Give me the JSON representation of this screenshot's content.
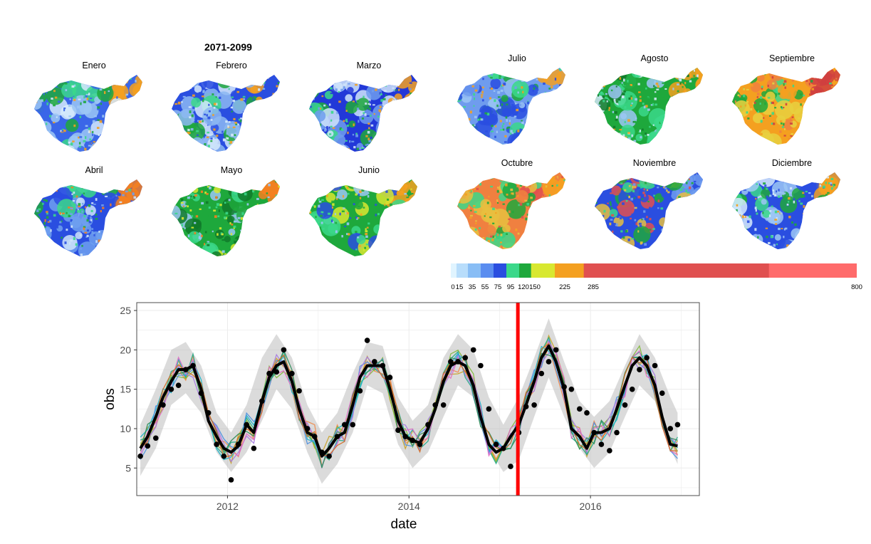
{
  "maps": {
    "period_title": "2071-2099",
    "panels": [
      {
        "month": "Enero",
        "palette": [
          "#3a66e8",
          "#9cc7f5",
          "#d6eafb",
          "#3bd88a",
          "#1ea83c",
          "#f4a020"
        ]
      },
      {
        "month": "Febrero",
        "palette": [
          "#2a4ee0",
          "#8cb8f2",
          "#d6eafb",
          "#3bd88a",
          "#1ea83c",
          "#f4a020"
        ]
      },
      {
        "month": "Marzo",
        "palette": [
          "#2238d8",
          "#6f9cee",
          "#cfe4fa",
          "#3bd88a",
          "#1ea83c",
          "#f4a020"
        ]
      },
      {
        "month": "Abril",
        "palette": [
          "#2a4ee0",
          "#6fa0ee",
          "#cfe4fa",
          "#3bd88a",
          "#1ea83c",
          "#f48020"
        ]
      },
      {
        "month": "Mayo",
        "palette": [
          "#1ea83c",
          "#117a2a",
          "#d8e830",
          "#3bd88a",
          "#9cc7f5",
          "#f48020"
        ]
      },
      {
        "month": "Junio",
        "palette": [
          "#1ea83c",
          "#3bd88a",
          "#2a4ee0",
          "#9cc7f5",
          "#d8e830",
          "#f4a020"
        ]
      },
      {
        "month": "Julio",
        "palette": [
          "#6f9cee",
          "#2a4ee0",
          "#3bd88a",
          "#1ea83c",
          "#9cc7f5",
          "#f4a020"
        ]
      },
      {
        "month": "Agosto",
        "palette": [
          "#1ea83c",
          "#3bd88a",
          "#9cc7f5",
          "#d6eafb",
          "#117a2a",
          "#f4a020"
        ]
      },
      {
        "month": "Septiembre",
        "palette": [
          "#f4a020",
          "#e8d040",
          "#1ea83c",
          "#3bd88a",
          "#f08040",
          "#d04040"
        ]
      },
      {
        "month": "Octubre",
        "palette": [
          "#f08040",
          "#e8c040",
          "#1ea83c",
          "#3bd88a",
          "#e05050",
          "#f4a020"
        ]
      },
      {
        "month": "Noviembre",
        "palette": [
          "#2a4ee0",
          "#e8c040",
          "#1ea83c",
          "#3bd88a",
          "#e05050",
          "#6f9cee"
        ]
      },
      {
        "month": "Diciembre",
        "palette": [
          "#2a4ee0",
          "#9cc7f5",
          "#d6eafb",
          "#3bd88a",
          "#1ea83c",
          "#f4a020"
        ]
      }
    ]
  },
  "colorbar": {
    "ticks": [
      "0",
      "15",
      "35",
      "55",
      "75",
      "95",
      "120",
      "150",
      "225",
      "285",
      "800"
    ],
    "breaks": [
      0,
      15,
      35,
      55,
      75,
      95,
      120,
      150,
      225,
      285,
      800
    ],
    "colors": [
      "#e0f4ff",
      "#b8ddfb",
      "#88bdf5",
      "#5a8df0",
      "#2a4ee0",
      "#3bd88a",
      "#1ea83c",
      "#d8e830",
      "#f4a020",
      "#e05050",
      "#ff6b6b"
    ]
  },
  "chart_data": {
    "type": "line",
    "xlabel": "date",
    "ylabel": "obs",
    "xlim": [
      2011.0,
      2017.2
    ],
    "ylim": [
      1.5,
      26
    ],
    "x_ticks": [
      2012,
      2014,
      2016
    ],
    "x_tick_labels": [
      "2012",
      "2014",
      "2016"
    ],
    "y_ticks": [
      5,
      10,
      15,
      20,
      25
    ],
    "y_tick_labels": [
      "5",
      "10",
      "15",
      "20",
      "25"
    ],
    "grid": true,
    "vertical_marker": {
      "x": 2015.2,
      "color": "#ff0000"
    },
    "mean_line": {
      "x": [
        2011.04,
        2011.12,
        2011.21,
        2011.29,
        2011.38,
        2011.46,
        2011.54,
        2011.62,
        2011.71,
        2011.79,
        2011.88,
        2011.96,
        2012.04,
        2012.12,
        2012.21,
        2012.29,
        2012.38,
        2012.46,
        2012.54,
        2012.62,
        2012.71,
        2012.79,
        2012.88,
        2012.96,
        2013.04,
        2013.12,
        2013.21,
        2013.29,
        2013.38,
        2013.46,
        2013.54,
        2013.62,
        2013.71,
        2013.79,
        2013.88,
        2013.96,
        2014.04,
        2014.12,
        2014.21,
        2014.29,
        2014.38,
        2014.46,
        2014.54,
        2014.62,
        2014.71,
        2014.79,
        2014.88,
        2014.96,
        2015.04,
        2015.12,
        2015.21,
        2015.29,
        2015.38,
        2015.46,
        2015.54,
        2015.62,
        2015.71,
        2015.79,
        2015.88,
        2015.96,
        2016.04,
        2016.12,
        2016.21,
        2016.29,
        2016.38,
        2016.46,
        2016.54,
        2016.62,
        2016.71,
        2016.79,
        2016.88,
        2016.96
      ],
      "y": [
        7.5,
        9.0,
        11.5,
        14.0,
        16.0,
        17.5,
        17.5,
        18.0,
        15.0,
        11.0,
        9.0,
        7.5,
        7.0,
        7.8,
        10.5,
        9.5,
        13.5,
        16.5,
        18.0,
        18.5,
        16.0,
        12.5,
        9.5,
        9.0,
        6.5,
        7.5,
        9.0,
        9.5,
        13.0,
        16.5,
        18.0,
        18.0,
        18.0,
        15.0,
        11.0,
        9.0,
        8.5,
        8.2,
        10.0,
        12.5,
        16.0,
        18.0,
        18.5,
        18.0,
        15.5,
        11.5,
        8.0,
        7.0,
        7.5,
        9.0,
        10.5,
        13.0,
        16.0,
        19.0,
        20.5,
        18.5,
        15.0,
        10.0,
        9.0,
        7.5,
        9.5,
        9.5,
        10.0,
        12.5,
        15.5,
        18.0,
        19.0,
        18.0,
        15.5,
        11.5,
        8.0,
        7.8
      ]
    },
    "observed_points": {
      "x": [
        2011.04,
        2011.12,
        2011.21,
        2011.29,
        2011.38,
        2011.46,
        2011.54,
        2011.62,
        2011.71,
        2011.79,
        2011.88,
        2011.96,
        2012.04,
        2012.12,
        2012.21,
        2012.29,
        2012.38,
        2012.46,
        2012.54,
        2012.62,
        2012.71,
        2012.79,
        2012.88,
        2012.96,
        2013.04,
        2013.12,
        2013.21,
        2013.29,
        2013.38,
        2013.46,
        2013.54,
        2013.62,
        2013.71,
        2013.79,
        2013.88,
        2013.96,
        2014.04,
        2014.12,
        2014.21,
        2014.29,
        2014.38,
        2014.46,
        2014.54,
        2014.62,
        2014.71,
        2014.79,
        2014.88,
        2014.96,
        2015.04,
        2015.12,
        2015.21,
        2015.29,
        2015.38,
        2015.46,
        2015.54,
        2015.62,
        2015.71,
        2015.79,
        2015.88,
        2015.96,
        2016.04,
        2016.12,
        2016.21,
        2016.29,
        2016.38,
        2016.46,
        2016.54,
        2016.62,
        2016.71,
        2016.79,
        2016.88,
        2016.96
      ],
      "y": [
        6.5,
        7.8,
        8.8,
        13.0,
        15.0,
        15.5,
        17.5,
        18.0,
        14.5,
        12.0,
        8.0,
        6.5,
        3.5,
        8.0,
        10.5,
        7.5,
        13.5,
        17.0,
        17.2,
        20.0,
        17.0,
        14.8,
        10.0,
        9.0,
        7.0,
        6.5,
        9.0,
        10.5,
        10.5,
        14.8,
        21.2,
        18.5,
        18.0,
        16.5,
        9.8,
        9.0,
        8.5,
        8.0,
        10.5,
        13.0,
        13.0,
        18.5,
        18.5,
        19.0,
        20.0,
        18.0,
        12.5,
        8.0,
        7.5,
        5.2,
        9.5,
        12.8,
        13.0,
        17.0,
        18.5,
        20.0,
        15.3,
        15.0,
        12.5,
        12.0,
        9.5,
        8.0,
        7.2,
        9.5,
        13.0,
        15.0,
        17.5,
        19.0,
        18.0,
        14.5,
        10.0,
        10.5
      ]
    },
    "band": {
      "x": [
        2011.04,
        2011.21,
        2011.38,
        2011.54,
        2011.71,
        2011.88,
        2012.04,
        2012.21,
        2012.38,
        2012.54,
        2012.71,
        2012.88,
        2013.04,
        2013.21,
        2013.38,
        2013.54,
        2013.71,
        2013.88,
        2014.04,
        2014.21,
        2014.38,
        2014.54,
        2014.71,
        2014.88,
        2015.04,
        2015.21,
        2015.38,
        2015.54,
        2015.71,
        2015.88,
        2016.04,
        2016.21,
        2016.38,
        2016.54,
        2016.71,
        2016.88,
        2016.96
      ],
      "upper": [
        10.5,
        15.0,
        20.0,
        21.0,
        18.0,
        12.0,
        9.5,
        13.0,
        19.0,
        22.0,
        19.0,
        13.0,
        9.5,
        12.0,
        17.0,
        21.0,
        20.5,
        14.0,
        11.0,
        13.0,
        19.0,
        22.0,
        20.0,
        14.0,
        10.5,
        14.0,
        19.0,
        24.0,
        18.5,
        13.5,
        11.5,
        13.5,
        18.0,
        22.0,
        19.0,
        14.0,
        12.0
      ],
      "lower": [
        4.0,
        7.5,
        13.0,
        14.5,
        12.0,
        7.0,
        4.5,
        7.0,
        11.0,
        15.0,
        12.5,
        7.0,
        3.0,
        5.5,
        9.5,
        15.5,
        14.5,
        8.0,
        5.0,
        7.0,
        11.5,
        15.5,
        14.0,
        7.5,
        4.5,
        6.0,
        11.5,
        16.5,
        11.5,
        7.5,
        5.0,
        7.0,
        11.5,
        15.5,
        13.5,
        7.5,
        5.5
      ]
    },
    "ensemble_colors": [
      "#f08a4b",
      "#c9a227",
      "#7fb83a",
      "#22a884",
      "#17b2c9",
      "#4a8fe0",
      "#a57be0",
      "#e06cc2",
      "#2e8b57",
      "#d2691e"
    ]
  }
}
